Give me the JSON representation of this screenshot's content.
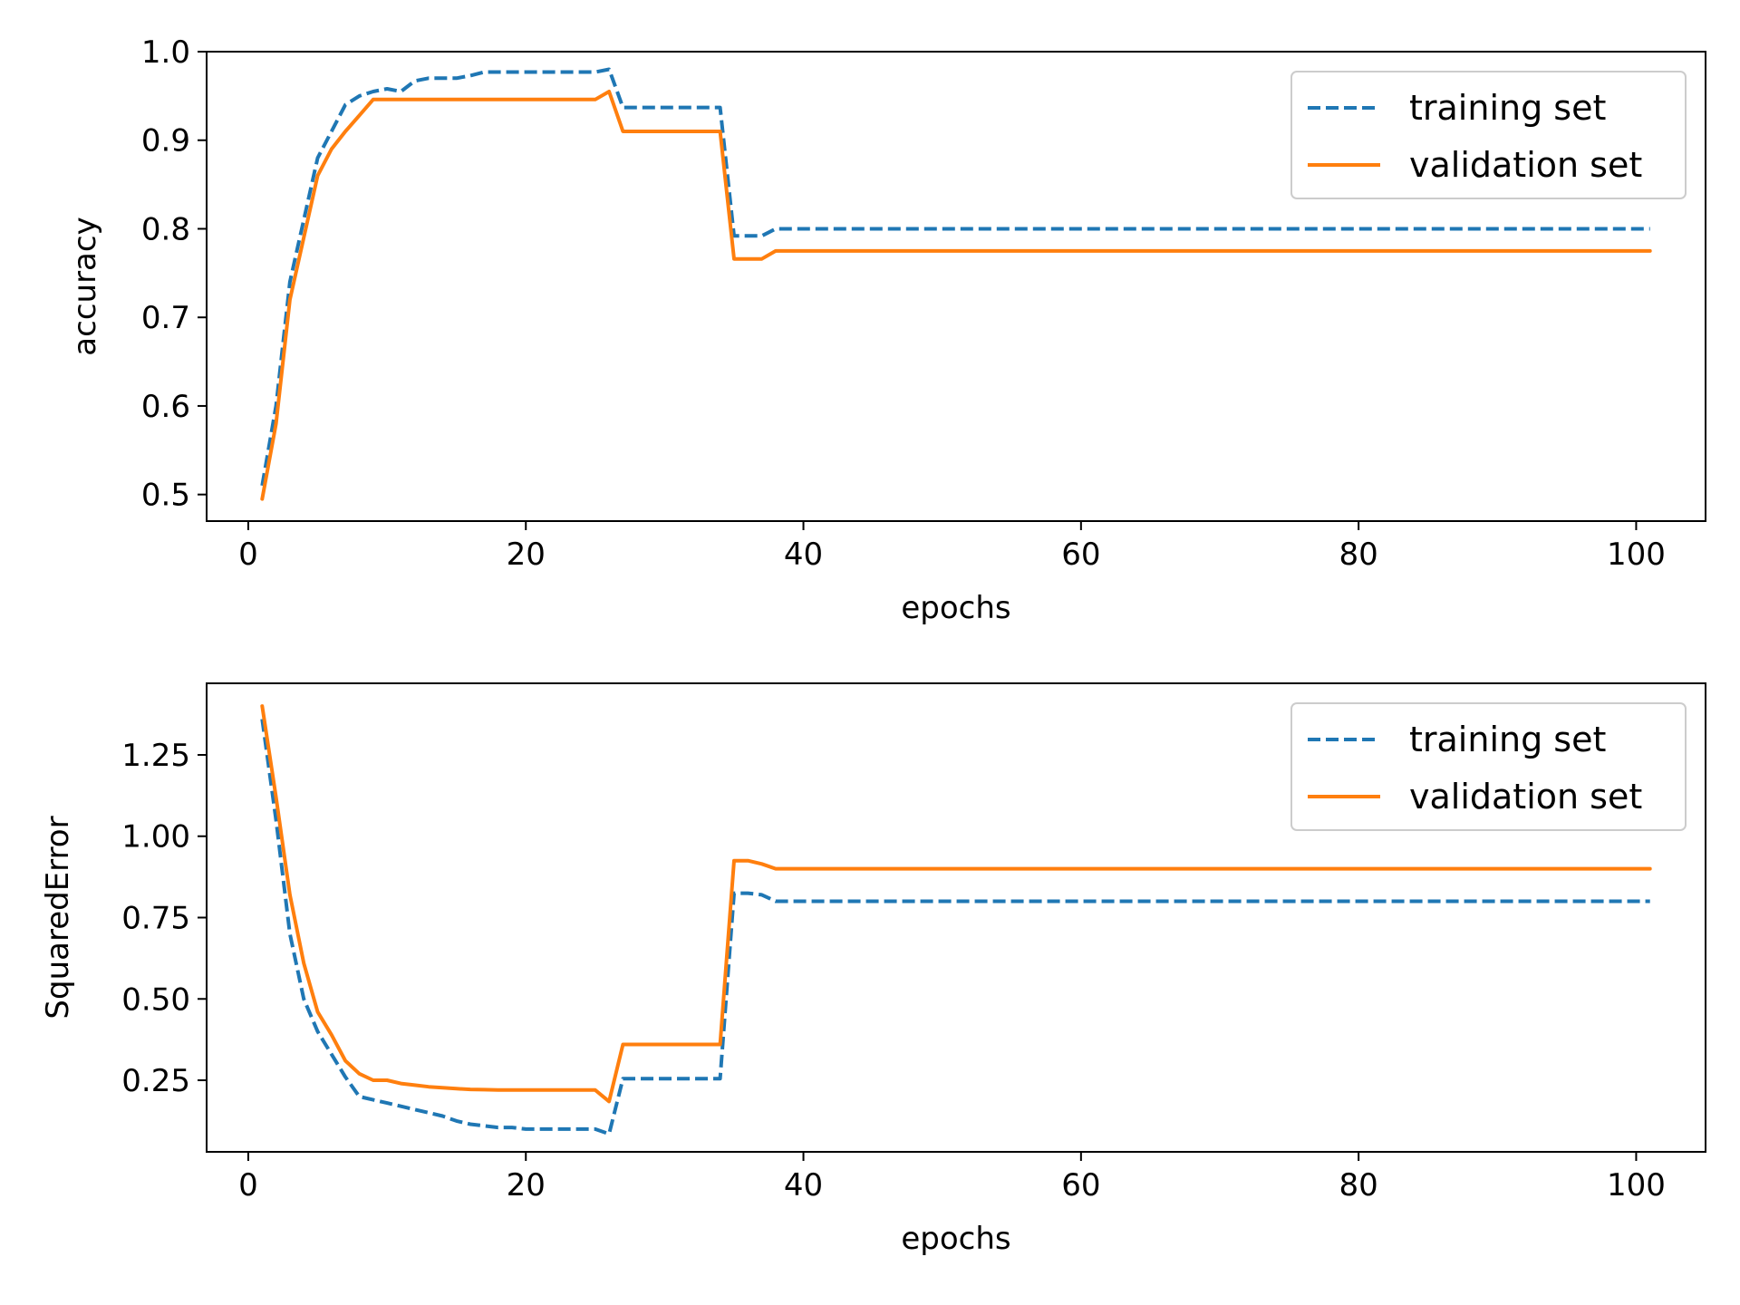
{
  "chart_data": [
    {
      "type": "line",
      "title": "",
      "xlabel": "epochs",
      "ylabel": "accuracy",
      "xlim": [
        -3,
        105
      ],
      "ylim": [
        0.47,
        1.0
      ],
      "xticks": [
        0,
        20,
        40,
        60,
        80,
        100
      ],
      "xtick_labels": [
        "0",
        "20",
        "40",
        "60",
        "80",
        "100"
      ],
      "yticks": [
        0.5,
        0.6,
        0.7,
        0.8,
        0.9,
        1.0
      ],
      "ytick_labels": [
        "0.5",
        "0.6",
        "0.7",
        "0.8",
        "0.9",
        "1.0"
      ],
      "grid": false,
      "legend": "top-right",
      "x": [
        1,
        2,
        3,
        4,
        5,
        6,
        7,
        8,
        9,
        10,
        11,
        12,
        13,
        14,
        15,
        16,
        17,
        18,
        19,
        20,
        21,
        22,
        23,
        24,
        25,
        26,
        27,
        28,
        29,
        30,
        31,
        32,
        33,
        34,
        35,
        36,
        37,
        38,
        39,
        40,
        41,
        42,
        43,
        44,
        45,
        46,
        47,
        48,
        49,
        50,
        51,
        52,
        53,
        54,
        55,
        56,
        57,
        58,
        59,
        60,
        61,
        62,
        63,
        64,
        65,
        66,
        67,
        68,
        69,
        70,
        71,
        72,
        73,
        74,
        75,
        76,
        77,
        78,
        79,
        80,
        81,
        82,
        83,
        84,
        85,
        86,
        87,
        88,
        89,
        90,
        91,
        92,
        93,
        94,
        95,
        96,
        97,
        98,
        99,
        100,
        101
      ],
      "series": [
        {
          "name": "training set",
          "color": "#1f77b4",
          "style": "dashed",
          "values": [
            0.51,
            0.6,
            0.74,
            0.81,
            0.88,
            0.91,
            0.94,
            0.95,
            0.955,
            0.958,
            0.955,
            0.967,
            0.97,
            0.97,
            0.97,
            0.973,
            0.977,
            0.977,
            0.977,
            0.977,
            0.977,
            0.977,
            0.977,
            0.977,
            0.977,
            0.98,
            0.937,
            0.937,
            0.937,
            0.937,
            0.937,
            0.937,
            0.937,
            0.937,
            0.792,
            0.792,
            0.792,
            0.8,
            0.8,
            0.8,
            0.8,
            0.8,
            0.8,
            0.8,
            0.8,
            0.8,
            0.8,
            0.8,
            0.8,
            0.8,
            0.8,
            0.8,
            0.8,
            0.8,
            0.8,
            0.8,
            0.8,
            0.8,
            0.8,
            0.8,
            0.8,
            0.8,
            0.8,
            0.8,
            0.8,
            0.8,
            0.8,
            0.8,
            0.8,
            0.8,
            0.8,
            0.8,
            0.8,
            0.8,
            0.8,
            0.8,
            0.8,
            0.8,
            0.8,
            0.8,
            0.8,
            0.8,
            0.8,
            0.8,
            0.8,
            0.8,
            0.8,
            0.8,
            0.8,
            0.8,
            0.8,
            0.8,
            0.8,
            0.8,
            0.8,
            0.8,
            0.8,
            0.8,
            0.8,
            0.8,
            0.8
          ]
        },
        {
          "name": "validation set",
          "color": "#ff7f0e",
          "style": "solid",
          "values": [
            0.495,
            0.58,
            0.72,
            0.79,
            0.86,
            0.89,
            0.91,
            0.928,
            0.946,
            0.946,
            0.946,
            0.946,
            0.946,
            0.946,
            0.946,
            0.946,
            0.946,
            0.946,
            0.946,
            0.946,
            0.946,
            0.946,
            0.946,
            0.946,
            0.946,
            0.955,
            0.91,
            0.91,
            0.91,
            0.91,
            0.91,
            0.91,
            0.91,
            0.91,
            0.766,
            0.766,
            0.766,
            0.775,
            0.775,
            0.775,
            0.775,
            0.775,
            0.775,
            0.775,
            0.775,
            0.775,
            0.775,
            0.775,
            0.775,
            0.775,
            0.775,
            0.775,
            0.775,
            0.775,
            0.775,
            0.775,
            0.775,
            0.775,
            0.775,
            0.775,
            0.775,
            0.775,
            0.775,
            0.775,
            0.775,
            0.775,
            0.775,
            0.775,
            0.775,
            0.775,
            0.775,
            0.775,
            0.775,
            0.775,
            0.775,
            0.775,
            0.775,
            0.775,
            0.775,
            0.775,
            0.775,
            0.775,
            0.775,
            0.775,
            0.775,
            0.775,
            0.775,
            0.775,
            0.775,
            0.775,
            0.775,
            0.775,
            0.775,
            0.775,
            0.775,
            0.775,
            0.775,
            0.775,
            0.775,
            0.775,
            0.775
          ]
        }
      ]
    },
    {
      "type": "line",
      "title": "",
      "xlabel": "epochs",
      "ylabel": "SquaredError",
      "xlim": [
        -3,
        105
      ],
      "ylim": [
        0.03,
        1.47
      ],
      "xticks": [
        0,
        20,
        40,
        60,
        80,
        100
      ],
      "xtick_labels": [
        "0",
        "20",
        "40",
        "60",
        "80",
        "100"
      ],
      "yticks": [
        0.25,
        0.5,
        0.75,
        1.0,
        1.25
      ],
      "ytick_labels": [
        "0.25",
        "0.50",
        "0.75",
        "1.00",
        "1.25"
      ],
      "grid": false,
      "legend": "top-right",
      "x": [
        1,
        2,
        3,
        4,
        5,
        6,
        7,
        8,
        9,
        10,
        11,
        12,
        13,
        14,
        15,
        16,
        17,
        18,
        19,
        20,
        21,
        22,
        23,
        24,
        25,
        26,
        27,
        28,
        29,
        30,
        31,
        32,
        33,
        34,
        35,
        36,
        37,
        38,
        39,
        40,
        41,
        42,
        43,
        44,
        45,
        46,
        47,
        48,
        49,
        50,
        51,
        52,
        53,
        54,
        55,
        56,
        57,
        58,
        59,
        60,
        61,
        62,
        63,
        64,
        65,
        66,
        67,
        68,
        69,
        70,
        71,
        72,
        73,
        74,
        75,
        76,
        77,
        78,
        79,
        80,
        81,
        82,
        83,
        84,
        85,
        86,
        87,
        88,
        89,
        90,
        91,
        92,
        93,
        94,
        95,
        96,
        97,
        98,
        99,
        100,
        101
      ],
      "series": [
        {
          "name": "training set",
          "color": "#1f77b4",
          "style": "dashed",
          "values": [
            1.36,
            1.05,
            0.7,
            0.5,
            0.4,
            0.33,
            0.26,
            0.2,
            0.19,
            0.18,
            0.17,
            0.16,
            0.15,
            0.14,
            0.125,
            0.115,
            0.11,
            0.105,
            0.105,
            0.1,
            0.1,
            0.1,
            0.1,
            0.1,
            0.1,
            0.085,
            0.255,
            0.255,
            0.255,
            0.255,
            0.255,
            0.255,
            0.255,
            0.255,
            0.825,
            0.825,
            0.82,
            0.8,
            0.8,
            0.8,
            0.8,
            0.8,
            0.8,
            0.8,
            0.8,
            0.8,
            0.8,
            0.8,
            0.8,
            0.8,
            0.8,
            0.8,
            0.8,
            0.8,
            0.8,
            0.8,
            0.8,
            0.8,
            0.8,
            0.8,
            0.8,
            0.8,
            0.8,
            0.8,
            0.8,
            0.8,
            0.8,
            0.8,
            0.8,
            0.8,
            0.8,
            0.8,
            0.8,
            0.8,
            0.8,
            0.8,
            0.8,
            0.8,
            0.8,
            0.8,
            0.8,
            0.8,
            0.8,
            0.8,
            0.8,
            0.8,
            0.8,
            0.8,
            0.8,
            0.8,
            0.8,
            0.8,
            0.8,
            0.8,
            0.8,
            0.8,
            0.8,
            0.8,
            0.8,
            0.8,
            0.8
          ]
        },
        {
          "name": "validation set",
          "color": "#ff7f0e",
          "style": "solid",
          "values": [
            1.4,
            1.12,
            0.82,
            0.61,
            0.46,
            0.39,
            0.31,
            0.27,
            0.25,
            0.25,
            0.24,
            0.235,
            0.23,
            0.227,
            0.224,
            0.222,
            0.221,
            0.22,
            0.22,
            0.22,
            0.22,
            0.22,
            0.22,
            0.22,
            0.22,
            0.185,
            0.36,
            0.36,
            0.36,
            0.36,
            0.36,
            0.36,
            0.36,
            0.36,
            0.925,
            0.925,
            0.915,
            0.9,
            0.9,
            0.9,
            0.9,
            0.9,
            0.9,
            0.9,
            0.9,
            0.9,
            0.9,
            0.9,
            0.9,
            0.9,
            0.9,
            0.9,
            0.9,
            0.9,
            0.9,
            0.9,
            0.9,
            0.9,
            0.9,
            0.9,
            0.9,
            0.9,
            0.9,
            0.9,
            0.9,
            0.9,
            0.9,
            0.9,
            0.9,
            0.9,
            0.9,
            0.9,
            0.9,
            0.9,
            0.9,
            0.9,
            0.9,
            0.9,
            0.9,
            0.9,
            0.9,
            0.9,
            0.9,
            0.9,
            0.9,
            0.9,
            0.9,
            0.9,
            0.9,
            0.9,
            0.9,
            0.9,
            0.9,
            0.9,
            0.9,
            0.9,
            0.9,
            0.9,
            0.9,
            0.9,
            0.9
          ]
        }
      ]
    }
  ]
}
